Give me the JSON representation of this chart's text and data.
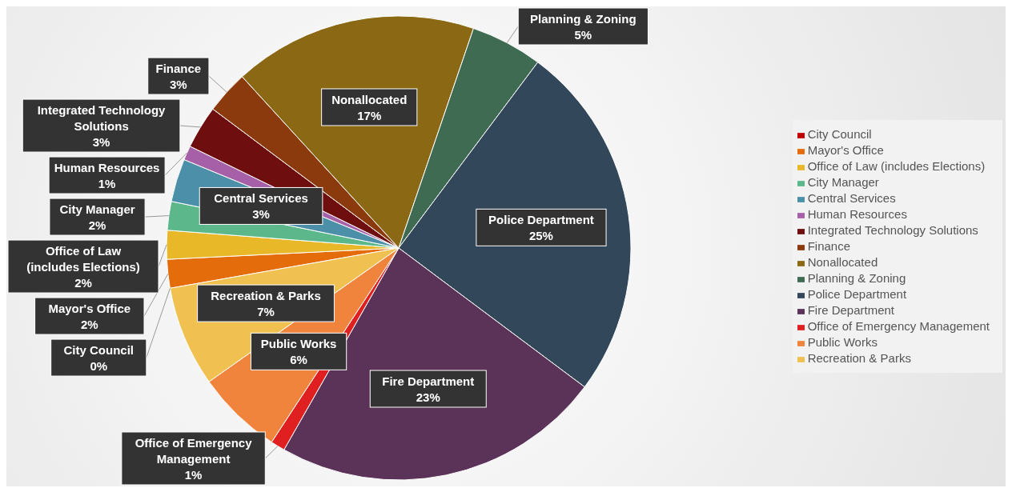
{
  "chart_data": {
    "type": "pie",
    "categories": [
      "City Council",
      "Mayor's Office",
      "Office of Law (includes Elections)",
      "City Manager",
      "Central Services",
      "Human Resources",
      "Integrated Technology Solutions",
      "Finance",
      "Nonallocated",
      "Planning & Zoning",
      "Police Department",
      "Fire Department",
      "Office of Emergency Management",
      "Public Works",
      "Recreation & Parks"
    ],
    "values": [
      0,
      2,
      2,
      2,
      3,
      1,
      3,
      3,
      17,
      5,
      25,
      23,
      1,
      6,
      7
    ],
    "value_labels": [
      "0%",
      "2%",
      "2%",
      "2%",
      "3%",
      "1%",
      "3%",
      "3%",
      "17%",
      "5%",
      "25%",
      "23%",
      "1%",
      "6%",
      "7%"
    ],
    "colors": [
      "#c00000",
      "#e46c0a",
      "#e8b828",
      "#5cb88a",
      "#4b8fa8",
      "#a660a8",
      "#6e0e0e",
      "#8b3a0e",
      "#8b6914",
      "#3e6b52",
      "#33475b",
      "#5b3358",
      "#e02020",
      "#f0843c",
      "#f0c050"
    ],
    "legend": "right"
  }
}
